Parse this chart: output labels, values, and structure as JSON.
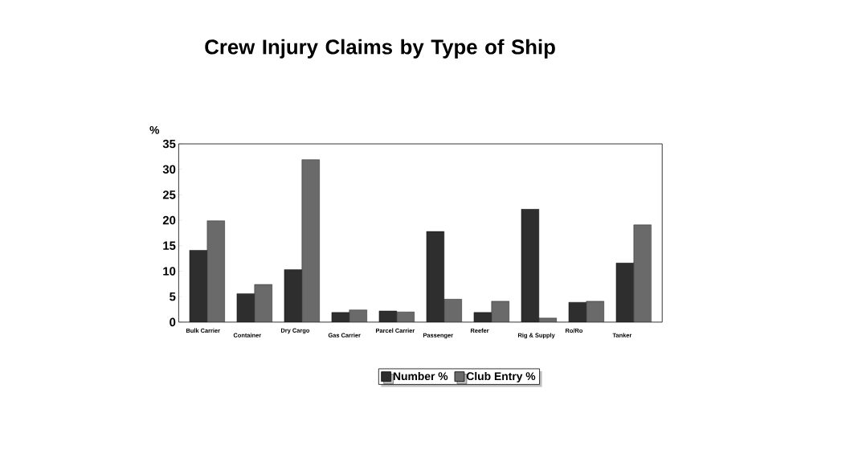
{
  "chart_data": {
    "type": "bar",
    "title": "Crew Injury Claims by Type of Ship",
    "ylabel": "%",
    "categories": [
      "Bulk Carrier",
      "Container",
      "Dry Cargo",
      "Gas Carrier",
      "Parcel Carrier",
      "Passenger",
      "Reefer",
      "Rig & Supply",
      "Ro/Ro",
      "Tanker"
    ],
    "series": [
      {
        "name": "Number %",
        "color": "#2e2e2e",
        "values": [
          14.1,
          5.6,
          10.3,
          1.9,
          2.2,
          17.8,
          1.9,
          22.2,
          3.9,
          11.6
        ]
      },
      {
        "name": "Club Entry %",
        "color": "#6a6a6a",
        "values": [
          19.9,
          7.4,
          31.9,
          2.4,
          2.0,
          4.5,
          4.1,
          0.8,
          4.1,
          19.1
        ]
      }
    ],
    "ylim": [
      0,
      35
    ],
    "yticks": [
      0,
      5,
      10,
      15,
      20,
      25,
      30,
      35
    ],
    "grid": false,
    "legend": "bottom"
  }
}
